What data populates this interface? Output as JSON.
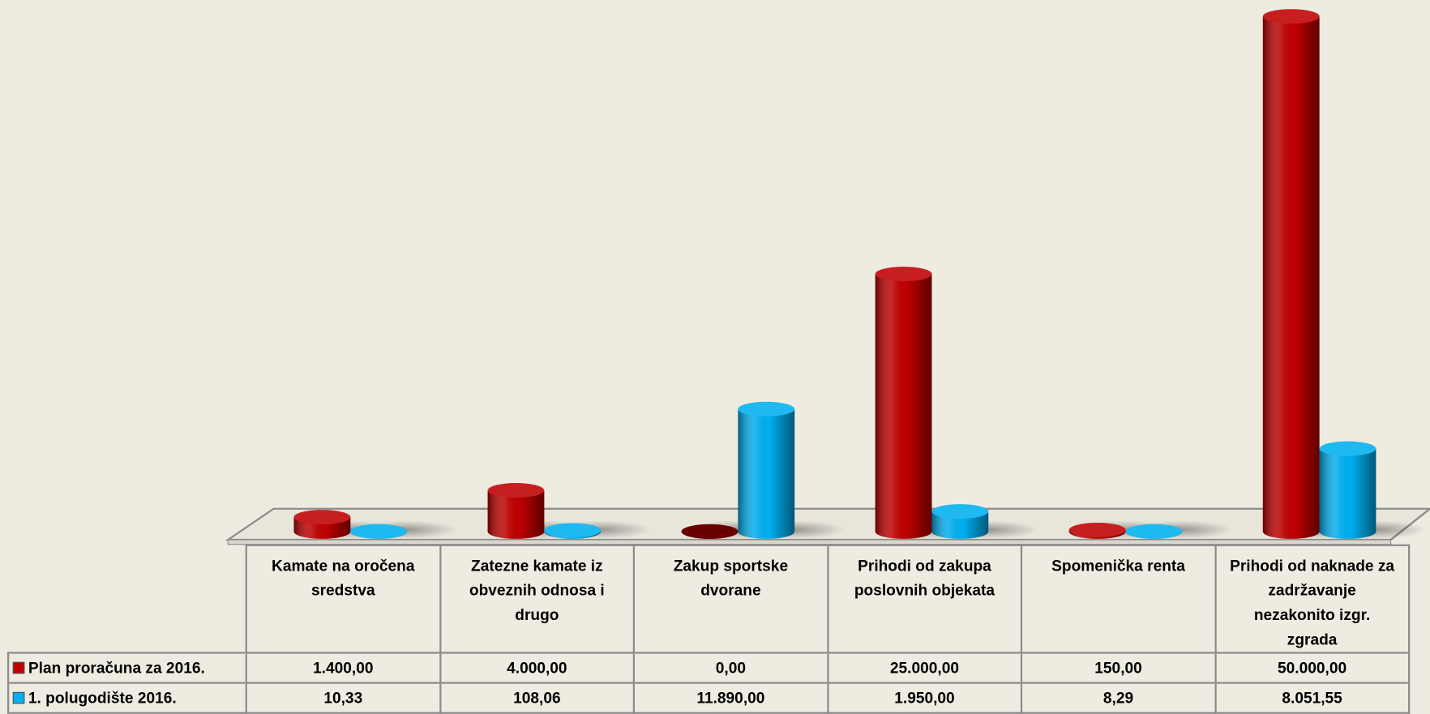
{
  "chart_data": {
    "type": "cylinder-bar",
    "categories": [
      "Kamate na oročena sredstva",
      "Zatezne kamate iz obveznih odnosa i drugo",
      "Zakup sportske dvorane",
      "Prihodi od zakupa poslovnih objekata",
      "Spomenička renta",
      "Prihodi od naknade za zadržavanje nezakonito izgr. zgrada"
    ],
    "series": [
      {
        "name": "Plan proračuna za 2016.",
        "color": "#c00000",
        "values": [
          1400,
          4000,
          0,
          25000,
          150,
          50000
        ],
        "value_labels": [
          "1.400,00",
          "4.000,00",
          "0,00",
          "25.000,00",
          "150,00",
          "50.000,00"
        ]
      },
      {
        "name": "1. polugodište 2016.",
        "color": "#00b0f0",
        "values": [
          10.33,
          108.06,
          11890,
          1950,
          8.29,
          8051.55
        ],
        "value_labels": [
          "10,33",
          "108,06",
          "11.890,00",
          "1.950,00",
          "8,29",
          "8.051,55"
        ]
      }
    ]
  }
}
